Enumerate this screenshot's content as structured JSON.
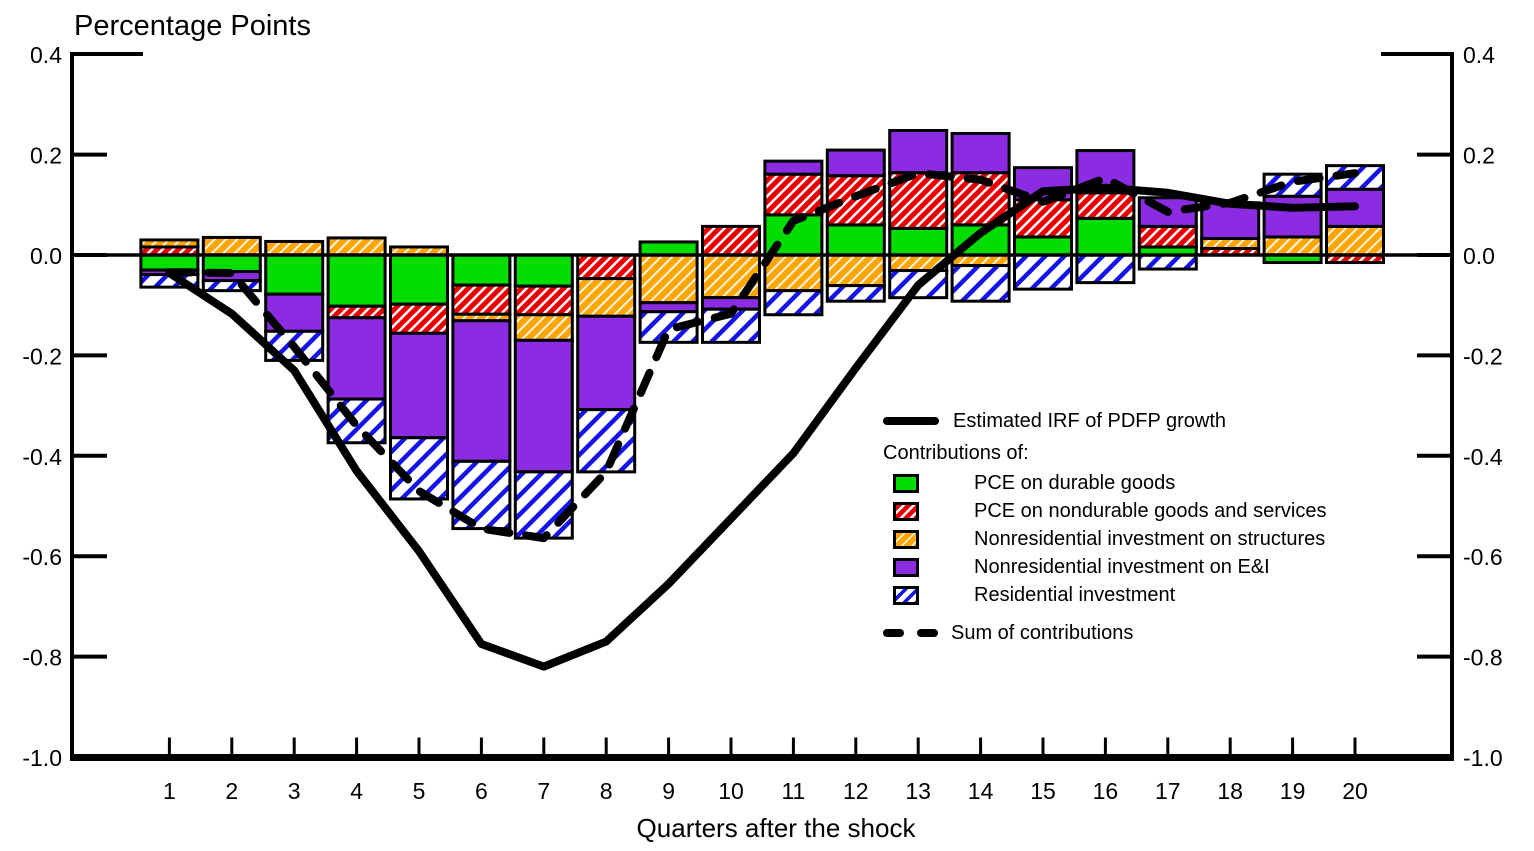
{
  "page": {
    "title": "Percentage Points",
    "background": "#ffffff"
  },
  "axes": {
    "x_label": "Quarters after the shock",
    "x_ticks": [
      "1",
      "2",
      "3",
      "4",
      "5",
      "6",
      "7",
      "8",
      "9",
      "10",
      "11",
      "12",
      "13",
      "14",
      "15",
      "16",
      "17",
      "18",
      "19",
      "20"
    ],
    "y_ticks": [
      "0.4",
      "0.2",
      "0.0",
      "-0.2",
      "-0.4",
      "-0.6",
      "-0.8",
      "-1.0"
    ],
    "y_tick_values": [
      0.4,
      0.2,
      0.0,
      -0.2,
      -0.4,
      -0.6,
      -0.8,
      -1.0
    ],
    "y_range": [
      -1.0,
      0.4
    ],
    "grid": "off",
    "dual_y_axis": true
  },
  "legend": {
    "position": "inside-right-middle",
    "irf_label": "Estimated IRF of PDFP growth",
    "contributions_label": "Contributions of:",
    "entries": [
      {
        "label": "PCE on durable goods",
        "swatch": "green-solid"
      },
      {
        "label": "PCE on nondurable goods and services",
        "swatch": "red-hatch"
      },
      {
        "label": "Nonresidential investment on structures",
        "swatch": "orange-hatch"
      },
      {
        "label": "Nonresidential investment on E&I",
        "swatch": "purple-solid"
      },
      {
        "label": "Residential investment",
        "swatch": "blue-hatch"
      }
    ],
    "sum_label": "Sum of contributions"
  },
  "colors": {
    "green": "#00DE00",
    "red": "#E80000",
    "orange": "#FFA500",
    "purple": "#8B2BE2",
    "blue": "#1414E8",
    "line": "#000000"
  },
  "chart_data": {
    "type": "bar",
    "subtype": "stacked-bars-with-lines",
    "title": "Percentage Points",
    "xlabel": "Quarters after the shock",
    "ylabel": "Percentage Points",
    "ylim": [
      -1.0,
      0.4
    ],
    "categories": [
      1,
      2,
      3,
      4,
      5,
      6,
      7,
      8,
      9,
      10,
      11,
      12,
      13,
      14,
      15,
      16,
      17,
      18,
      19,
      20
    ],
    "series": [
      {
        "name": "PCE on durable goods",
        "slug": "pce-durable",
        "fill": "solid",
        "color": "#00DE00",
        "values": [
          -0.03,
          -0.033,
          -0.078,
          -0.102,
          -0.098,
          -0.06,
          -0.062,
          0,
          0.026,
          0,
          0.08,
          0.06,
          0.053,
          0.06,
          0.036,
          0.073,
          0.016,
          0,
          -0.015,
          0
        ]
      },
      {
        "name": "PCE on nondurable goods and services",
        "slug": "pce-nondurable",
        "fill": "hatch",
        "color": "#E80000",
        "values": [
          0.016,
          0,
          0,
          -0.023,
          -0.058,
          -0.058,
          -0.057,
          -0.047,
          0,
          0.057,
          0.081,
          0.098,
          0.111,
          0.104,
          0.074,
          0.051,
          0.041,
          0.013,
          0,
          -0.015
        ]
      },
      {
        "name": "Nonresidential investment on structures",
        "slug": "nonres-structures",
        "fill": "hatch",
        "color": "#FFA500",
        "values": [
          0.014,
          0.035,
          0.027,
          0.034,
          0.016,
          -0.013,
          -0.051,
          -0.075,
          -0.095,
          -0.085,
          -0.071,
          -0.061,
          -0.031,
          -0.021,
          0,
          0,
          0,
          0.02,
          0.036,
          0.057
        ]
      },
      {
        "name": "Nonresidential investment on E&I",
        "slug": "nonres-ei",
        "fill": "solid",
        "color": "#8B2BE2",
        "values": [
          -0.009,
          -0.018,
          -0.074,
          -0.162,
          -0.208,
          -0.28,
          -0.262,
          -0.186,
          -0.018,
          -0.023,
          0.026,
          0.051,
          0.084,
          0.078,
          0.064,
          0.084,
          0.057,
          0.071,
          0.081,
          0.074
        ]
      },
      {
        "name": "Residential investment",
        "slug": "residential",
        "fill": "hatch",
        "color": "#1414E8",
        "values": [
          -0.025,
          -0.02,
          -0.058,
          -0.087,
          -0.122,
          -0.134,
          -0.132,
          -0.124,
          -0.061,
          -0.066,
          -0.048,
          -0.031,
          -0.054,
          -0.071,
          -0.068,
          -0.055,
          -0.028,
          0,
          0.044,
          0.047
        ]
      }
    ],
    "lines": [
      {
        "name": "Estimated IRF of PDFP growth",
        "slug": "irf-line",
        "style": "solid",
        "values": [
          -0.036,
          -0.117,
          -0.23,
          -0.43,
          -0.59,
          -0.775,
          -0.82,
          -0.77,
          -0.655,
          -0.525,
          -0.395,
          -0.225,
          -0.06,
          0.044,
          0.127,
          0.134,
          0.124,
          0.102,
          0.094,
          0.097
        ]
      },
      {
        "name": "Sum of contributions",
        "slug": "sum-line",
        "style": "dashed",
        "values": [
          -0.034,
          -0.036,
          -0.183,
          -0.34,
          -0.47,
          -0.545,
          -0.564,
          -0.432,
          -0.148,
          -0.117,
          0.068,
          0.117,
          0.163,
          0.15,
          0.106,
          0.153,
          0.086,
          0.104,
          0.146,
          0.163
        ]
      }
    ]
  }
}
